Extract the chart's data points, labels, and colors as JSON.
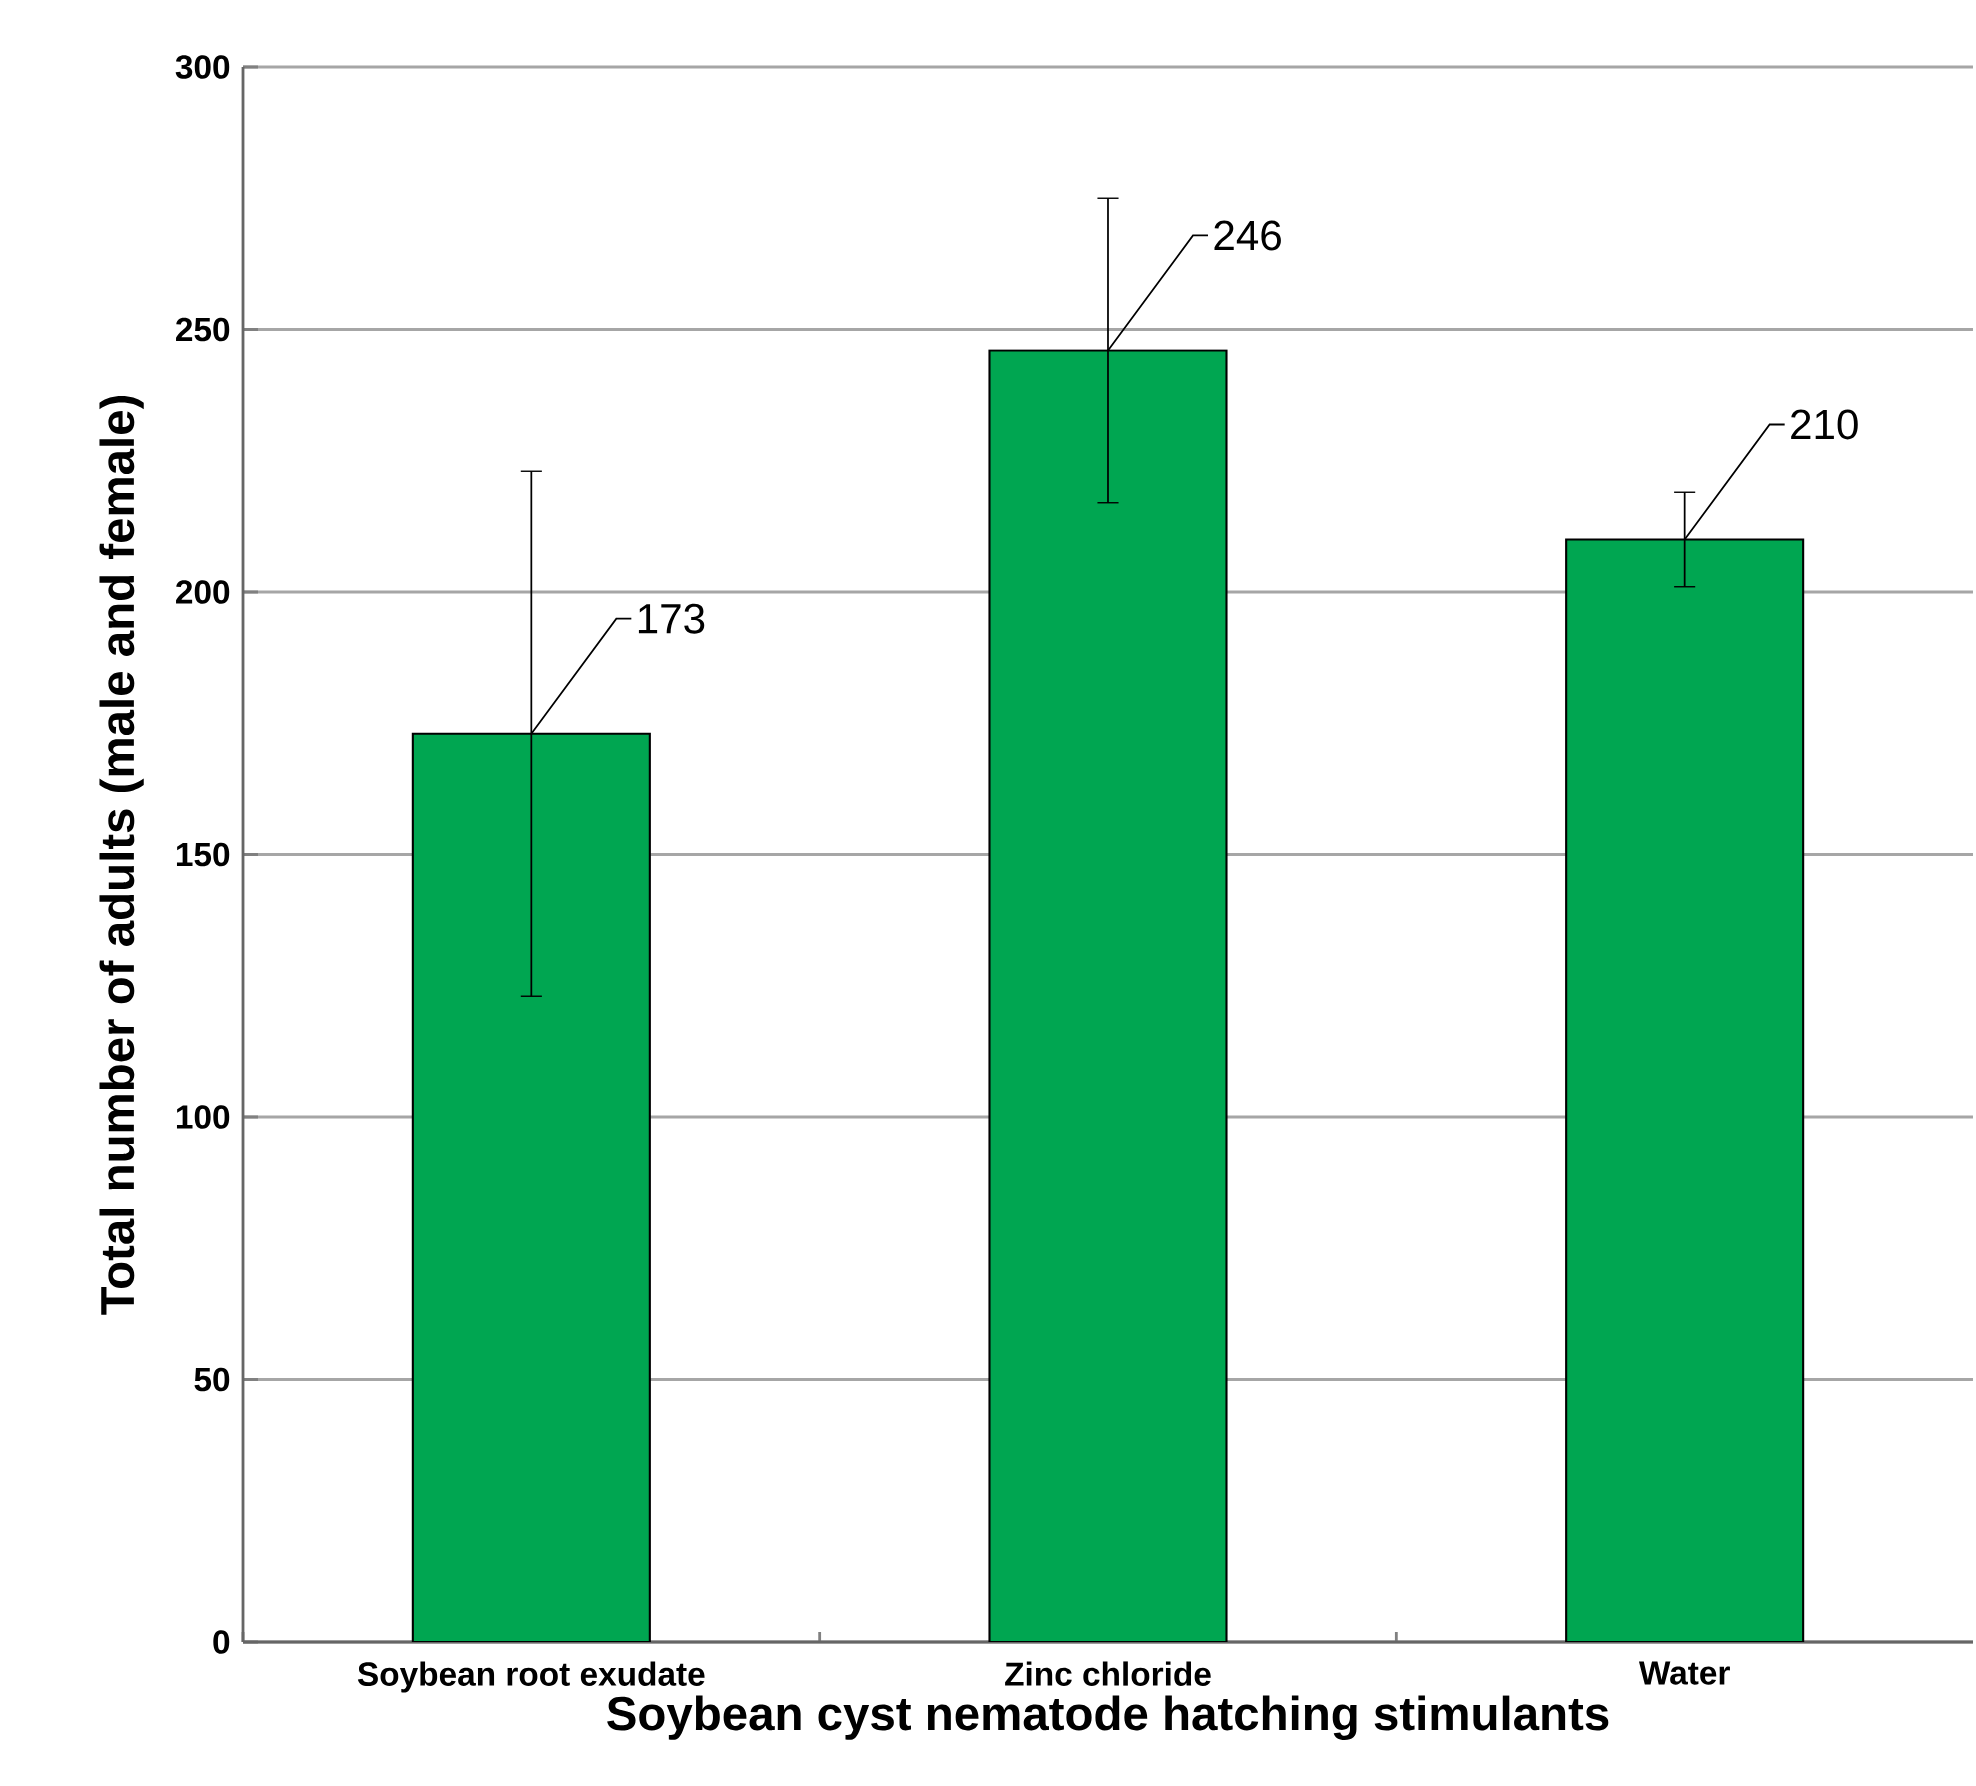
{
  "chart_data": {
    "type": "bar",
    "xlabel": "Soybean cyst nematode hatching stimulants",
    "ylabel": "Total number of adults (male and female)",
    "categories": [
      "Soybean root exudate",
      "Zinc chloride",
      "Water"
    ],
    "values": [
      173,
      246,
      210
    ],
    "errors": [
      50,
      29,
      9
    ],
    "color": "#00a651",
    "ylim": [
      0,
      300
    ],
    "yticks": [
      0,
      50,
      100,
      150,
      200,
      250,
      300
    ],
    "grid": "y",
    "data_labels": true
  }
}
